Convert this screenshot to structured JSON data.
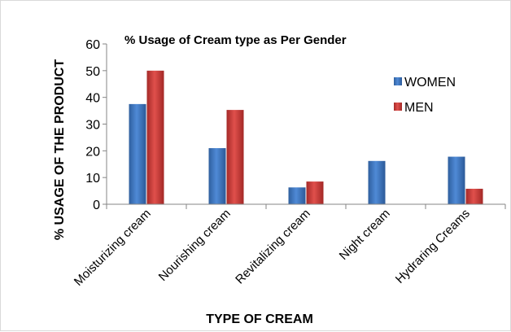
{
  "chart_data": {
    "type": "bar",
    "title": "% Usage of Cream type as Per Gender",
    "xlabel": "TYPE OF CREAM",
    "ylabel": "% USAGE OF THE PRODUCT",
    "categories": [
      "Moisturizing cream",
      "Nourishing cream",
      "Revitalizing cream",
      "Night cream",
      "Hydraring Creams"
    ],
    "series": [
      {
        "name": "WOMEN",
        "color": "#3f77c4",
        "values": [
          37.5,
          21,
          6.3,
          16.2,
          17.8
        ]
      },
      {
        "name": "MEN",
        "color": "#c83a38",
        "values": [
          50,
          35.3,
          8.5,
          0,
          5.8
        ]
      }
    ],
    "ylim": [
      0,
      60
    ],
    "yticks": [
      0,
      10,
      20,
      30,
      40,
      50,
      60
    ],
    "grid": false,
    "legend_position": "right"
  }
}
